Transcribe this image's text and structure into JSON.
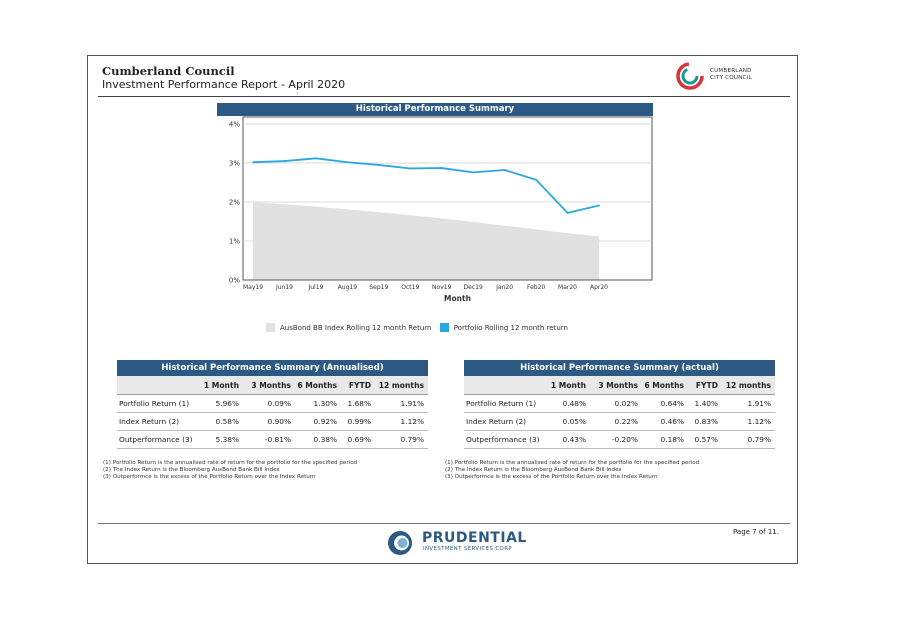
{
  "header": {
    "council": "Cumberland Council",
    "title": "Investment Performance Report - April 2020",
    "logo_line1": "CUMBERLAND",
    "logo_line2": "CITY COUNCIL"
  },
  "chart_data": {
    "type": "area",
    "title": "Historical Performance Summary",
    "xlabel": "Month",
    "ylabel": "",
    "categories": [
      "May19",
      "Jun19",
      "Jul19",
      "Aug19",
      "Sep19",
      "Oct19",
      "Nov19",
      "Dec19",
      "Jan20",
      "Feb20",
      "Mar20",
      "Apr20"
    ],
    "ylim": [
      0,
      4
    ],
    "yticks": [
      "0%",
      "1%",
      "2%",
      "3%",
      "4%"
    ],
    "grid": true,
    "legend_position": "bottom",
    "series": [
      {
        "name": "AusBond BB Index Rolling 12 month Return",
        "kind": "area",
        "color": "#e1e1e1",
        "values": [
          2.0,
          1.94,
          1.88,
          1.81,
          1.74,
          1.66,
          1.58,
          1.49,
          1.39,
          1.3,
          1.2,
          1.12
        ]
      },
      {
        "name": "Portfolio Rolling 12 month return",
        "kind": "line",
        "color": "#29a8e0",
        "values": [
          3.02,
          3.05,
          3.12,
          3.02,
          2.95,
          2.86,
          2.87,
          2.76,
          2.82,
          2.57,
          1.72,
          1.91
        ]
      }
    ]
  },
  "annualised": {
    "title": "Historical Performance Summary (Annualised)",
    "headers": [
      "",
      "1 Month",
      "3 Months",
      "6 Months",
      "FYTD",
      "12 months"
    ],
    "rows": [
      [
        "Portfolio Return (1)",
        "5.96%",
        "0.09%",
        "1.30%",
        "1.68%",
        "1.91%"
      ],
      [
        "Index Return (2)",
        "0.58%",
        "0.90%",
        "0.92%",
        "0.99%",
        "1.12%"
      ],
      [
        "Outperformance (3)",
        "5.38%",
        "-0.81%",
        "0.38%",
        "0.69%",
        "0.79%"
      ]
    ]
  },
  "actual": {
    "title": "Historical Performance Summary (actual)",
    "headers": [
      "",
      "1 Month",
      "3 Months",
      "6 Months",
      "FYTD",
      "12 months"
    ],
    "rows": [
      [
        "Portfolio Return (1)",
        "0.48%",
        "0.02%",
        "0.64%",
        "1.40%",
        "1.91%"
      ],
      [
        "Index Return (2)",
        "0.05%",
        "0.22%",
        "0.46%",
        "0.83%",
        "1.12%"
      ],
      [
        "Outperformance (3)",
        "0.43%",
        "-0.20%",
        "0.18%",
        "0.57%",
        "0.79%"
      ]
    ]
  },
  "notes": [
    "(1) Portfolio Return is the annualised rate of return for the portfolio for the specified period",
    "(2) The Index Return is the Bloomberg AusBond Bank Bill Index",
    "(3) Outperformce is the excess of the Portfolio Return over the Index Return"
  ],
  "footer": {
    "page": "Page 7 of 11.",
    "brand": "PRUDENTIAL",
    "brand_sub": "INVESTMENT SERVICES CORP"
  },
  "colors": {
    "navy": "#2c5a84",
    "line": "#29a8e0",
    "area": "#e1e1e1",
    "council_red": "#d8343c",
    "council_teal": "#1a9a8c"
  }
}
